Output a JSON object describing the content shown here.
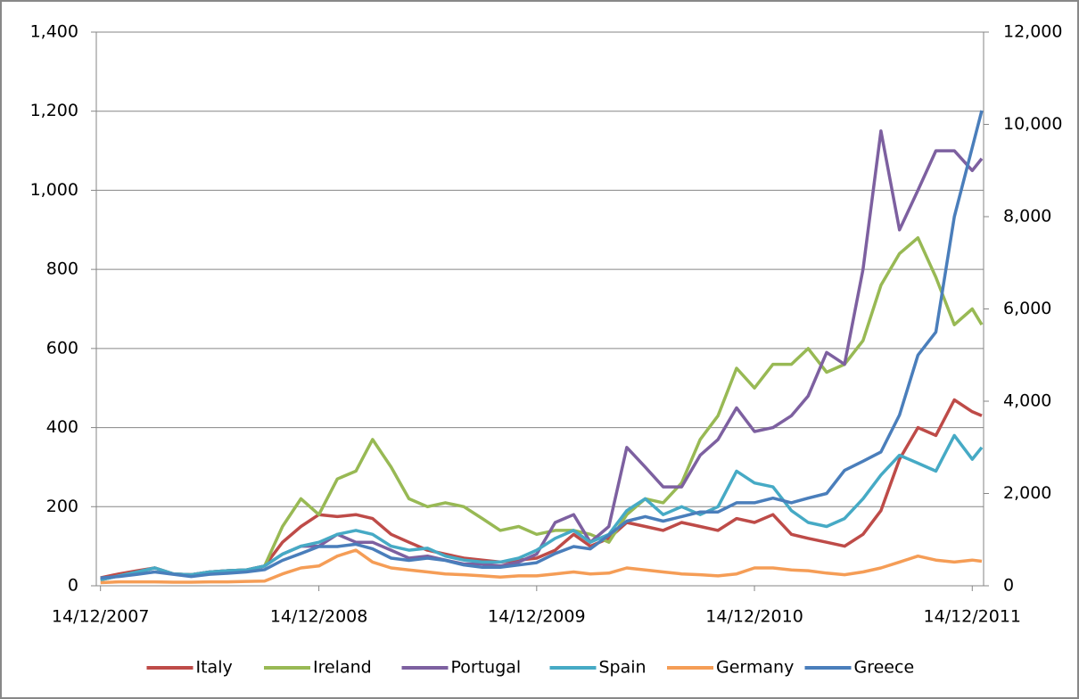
{
  "chart_data": {
    "type": "line",
    "x": [
      "14/12/2007",
      "14/01/2008",
      "14/02/2008",
      "14/03/2008",
      "14/04/2008",
      "14/05/2008",
      "14/06/2008",
      "14/07/2008",
      "14/08/2008",
      "14/09/2008",
      "14/10/2008",
      "14/11/2008",
      "14/12/2008",
      "14/01/2009",
      "14/02/2009",
      "14/03/2009",
      "14/04/2009",
      "14/05/2009",
      "14/06/2009",
      "14/07/2009",
      "14/08/2009",
      "14/09/2009",
      "14/10/2009",
      "14/11/2009",
      "14/12/2009",
      "14/01/2010",
      "14/02/2010",
      "14/03/2010",
      "14/04/2010",
      "14/05/2010",
      "14/06/2010",
      "14/07/2010",
      "14/08/2010",
      "14/09/2010",
      "14/10/2010",
      "14/11/2010",
      "14/12/2010",
      "14/01/2011",
      "14/02/2011",
      "14/03/2011",
      "14/04/2011",
      "14/05/2011",
      "14/06/2011",
      "14/07/2011",
      "14/08/2011",
      "14/09/2011",
      "14/10/2011",
      "14/11/2011",
      "14/12/2011",
      "30/12/2011"
    ],
    "xlim": [
      "07/12/2007",
      "02/01/2012"
    ],
    "xticks": [
      "14/12/2007",
      "14/12/2008",
      "14/12/2009",
      "14/12/2010",
      "14/12/2011"
    ],
    "ylim": [
      0,
      1400
    ],
    "yticks": [
      0,
      200,
      400,
      600,
      800,
      {
        "value": 1000,
        "label": "1,000"
      },
      {
        "value": 1200,
        "label": "1,200"
      },
      {
        "value": 1400,
        "label": "1,400"
      }
    ],
    "y2lim": [
      0,
      12000
    ],
    "y2ticks": [
      0,
      {
        "value": 2000,
        "label": "2,000"
      },
      {
        "value": 4000,
        "label": "4,000"
      },
      {
        "value": 6000,
        "label": "6,000"
      },
      {
        "value": 8000,
        "label": "8,000"
      },
      {
        "value": 10000,
        "label": "10,000"
      },
      {
        "value": 12000,
        "label": "12,000"
      }
    ],
    "grid": true,
    "legend": "bottom",
    "series": [
      {
        "name": "Italy",
        "color": "#be4b48",
        "values": [
          20,
          30,
          38,
          45,
          30,
          28,
          35,
          38,
          40,
          50,
          110,
          150,
          180,
          175,
          180,
          170,
          130,
          110,
          90,
          80,
          70,
          65,
          60,
          65,
          70,
          90,
          130,
          100,
          120,
          160,
          150,
          140,
          160,
          150,
          140,
          170,
          160,
          180,
          130,
          120,
          110,
          100,
          130,
          190,
          320,
          400,
          380,
          470,
          440,
          430
        ]
      },
      {
        "name": "Ireland",
        "color": "#98b954",
        "values": [
          15,
          25,
          35,
          45,
          30,
          28,
          35,
          38,
          40,
          50,
          150,
          220,
          180,
          270,
          290,
          370,
          300,
          220,
          200,
          210,
          200,
          170,
          140,
          150,
          130,
          140,
          140,
          130,
          110,
          180,
          220,
          210,
          260,
          370,
          430,
          550,
          500,
          560,
          560,
          600,
          540,
          560,
          620,
          760,
          840,
          880,
          780,
          660,
          700,
          660
        ]
      },
      {
        "name": "Portugal",
        "color": "#7d60a0",
        "values": [
          15,
          25,
          35,
          45,
          30,
          28,
          35,
          38,
          40,
          50,
          80,
          100,
          100,
          130,
          110,
          110,
          90,
          70,
          75,
          65,
          55,
          55,
          50,
          60,
          80,
          160,
          180,
          110,
          150,
          350,
          300,
          250,
          250,
          330,
          370,
          450,
          390,
          400,
          430,
          480,
          590,
          560,
          800,
          1150,
          900,
          1000,
          1100,
          1100,
          1050,
          1080
        ]
      },
      {
        "name": "Spain",
        "color": "#46aac5",
        "values": [
          15,
          25,
          35,
          45,
          30,
          28,
          35,
          38,
          40,
          50,
          80,
          100,
          110,
          130,
          140,
          130,
          100,
          90,
          95,
          75,
          65,
          60,
          60,
          70,
          90,
          120,
          140,
          110,
          130,
          190,
          220,
          180,
          200,
          180,
          200,
          290,
          260,
          250,
          190,
          160,
          150,
          170,
          220,
          280,
          330,
          310,
          290,
          380,
          320,
          350
        ]
      },
      {
        "name": "Germany",
        "color": "#f59d56",
        "values": [
          8,
          10,
          10,
          10,
          9,
          9,
          10,
          10,
          11,
          12,
          30,
          45,
          50,
          75,
          90,
          60,
          45,
          40,
          35,
          30,
          28,
          25,
          22,
          25,
          25,
          30,
          35,
          30,
          32,
          45,
          40,
          35,
          30,
          28,
          25,
          30,
          45,
          45,
          40,
          38,
          32,
          28,
          35,
          45,
          60,
          75,
          65,
          60,
          65,
          62
        ]
      },
      {
        "name": "Greece",
        "color": "#4a7ebb",
        "axis": "y2",
        "values": [
          170,
          200,
          250,
          300,
          250,
          200,
          250,
          270,
          300,
          350,
          550,
          700,
          850,
          850,
          900,
          800,
          600,
          550,
          600,
          550,
          450,
          400,
          400,
          450,
          500,
          700,
          850,
          800,
          1100,
          1400,
          1500,
          1400,
          1500,
          1600,
          1600,
          1800,
          1800,
          1900,
          1800,
          1900,
          2000,
          2500,
          2700,
          2900,
          3700,
          5000,
          5500,
          8000,
          9500,
          10300
        ]
      }
    ]
  }
}
